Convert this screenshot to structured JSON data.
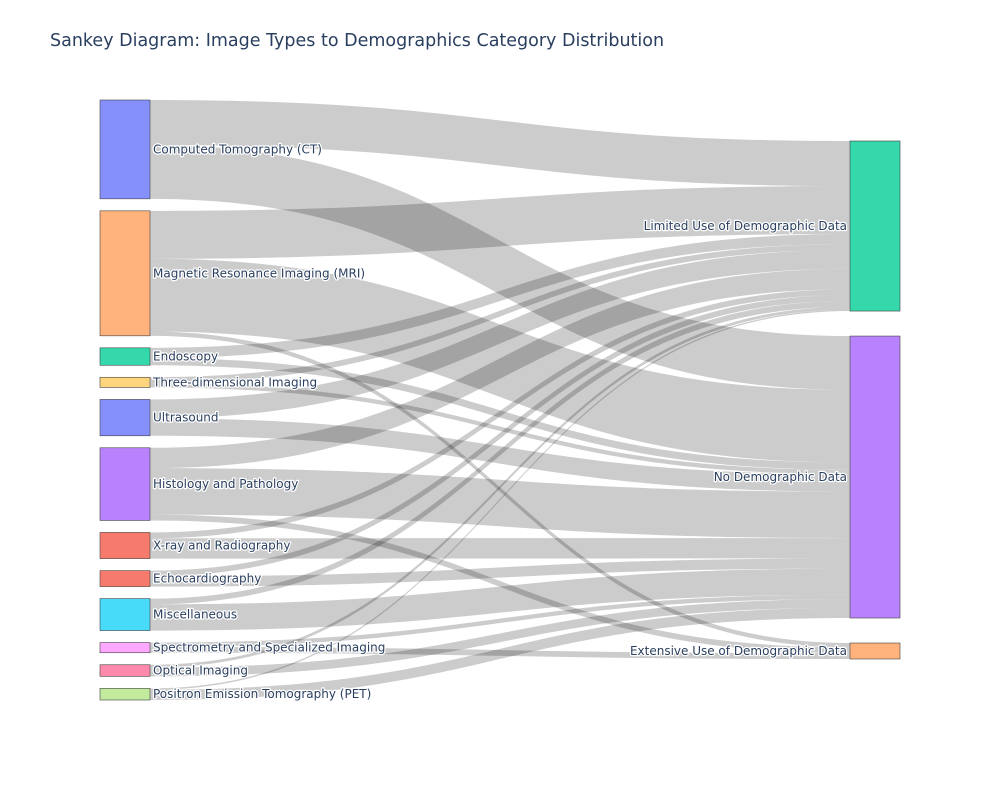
{
  "chart_data": {
    "type": "sankey",
    "title": "Sankey Diagram: Image Types to Demographics Category Distribution",
    "sources": [
      {
        "name": "Computed Tomography (CT)",
        "color": "#8590fd"
      },
      {
        "name": "Magnetic Resonance Imaging (MRI)",
        "color": "#ffb27b"
      },
      {
        "name": "Endoscopy",
        "color": "#34d8ab"
      },
      {
        "name": "Three-dimensional Imaging",
        "color": "#fed57d"
      },
      {
        "name": "Ultrasound",
        "color": "#8590fd"
      },
      {
        "name": "Histology and Pathology",
        "color": "#b982fd"
      },
      {
        "name": "X-ray and Radiography",
        "color": "#f67b6c"
      },
      {
        "name": "Echocardiography",
        "color": "#f67b6c"
      },
      {
        "name": "Miscellaneous",
        "color": "#48dbf9"
      },
      {
        "name": "Spectrometry and Specialized Imaging",
        "color": "#ffa8ff"
      },
      {
        "name": "Optical Imaging",
        "color": "#ff8aab"
      },
      {
        "name": "Positron Emission Tomography (PET)",
        "color": "#c3eb9d"
      }
    ],
    "targets": [
      {
        "name": "Limited Use of Demographic Data",
        "color": "#34d8ab"
      },
      {
        "name": "No Demographic Data",
        "color": "#b982fd"
      },
      {
        "name": "Extensive Use of Demographic Data",
        "color": "#ffb27b"
      }
    ],
    "links": [
      {
        "source": 0,
        "target": 0,
        "value": 31
      },
      {
        "source": 0,
        "target": 1,
        "value": 37
      },
      {
        "source": 1,
        "target": 0,
        "value": 33
      },
      {
        "source": 1,
        "target": 1,
        "value": 50
      },
      {
        "source": 1,
        "target": 2,
        "value": 3
      },
      {
        "source": 2,
        "target": 0,
        "value": 7
      },
      {
        "source": 2,
        "target": 1,
        "value": 5
      },
      {
        "source": 3,
        "target": 0,
        "value": 4
      },
      {
        "source": 3,
        "target": 1,
        "value": 3
      },
      {
        "source": 4,
        "target": 0,
        "value": 13
      },
      {
        "source": 4,
        "target": 1,
        "value": 12
      },
      {
        "source": 5,
        "target": 0,
        "value": 14
      },
      {
        "source": 5,
        "target": 1,
        "value": 32
      },
      {
        "source": 5,
        "target": 2,
        "value": 4
      },
      {
        "source": 6,
        "target": 0,
        "value": 4
      },
      {
        "source": 6,
        "target": 1,
        "value": 14
      },
      {
        "source": 7,
        "target": 0,
        "value": 4
      },
      {
        "source": 7,
        "target": 1,
        "value": 7
      },
      {
        "source": 8,
        "target": 0,
        "value": 4
      },
      {
        "source": 8,
        "target": 1,
        "value": 18
      },
      {
        "source": 9,
        "target": 1,
        "value": 3
      },
      {
        "source": 9,
        "target": 2,
        "value": 4
      },
      {
        "source": 10,
        "target": 0,
        "value": 2
      },
      {
        "source": 10,
        "target": 1,
        "value": 6
      },
      {
        "source": 11,
        "target": 0,
        "value": 1
      },
      {
        "source": 11,
        "target": 1,
        "value": 7
      }
    ]
  }
}
